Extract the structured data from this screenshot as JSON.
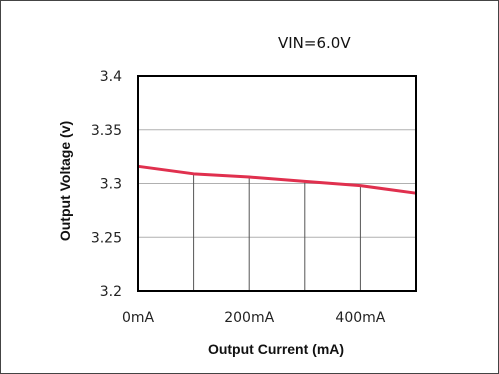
{
  "chart_data": {
    "type": "line",
    "title": "",
    "annotation": "VIN=6.0V",
    "xlabel": "Output Current (mA)",
    "ylabel": "Output Voltage (v)",
    "x_unit": "mA",
    "xlim": [
      0,
      500
    ],
    "ylim": [
      3.2,
      3.4
    ],
    "x_tick_values": [
      0,
      200,
      400
    ],
    "x_tick_labels": [
      "0mA",
      "200mA",
      "400mA"
    ],
    "y_tick_values": [
      3.2,
      3.25,
      3.3,
      3.35,
      3.4
    ],
    "y_tick_labels": [
      "3.2",
      "3.25",
      "3.3",
      "3.35",
      "3.4"
    ],
    "x_grid_values": [
      100,
      200,
      300,
      400
    ],
    "grid": true,
    "series": [
      {
        "color": "#e0304e",
        "x": [
          0,
          100,
          200,
          300,
          400,
          500
        ],
        "y": [
          3.316,
          3.309,
          3.306,
          3.302,
          3.298,
          3.291
        ]
      }
    ]
  },
  "colors": {
    "axis": "#000000",
    "grid": "#b0b0b0",
    "frame": "#444444"
  }
}
